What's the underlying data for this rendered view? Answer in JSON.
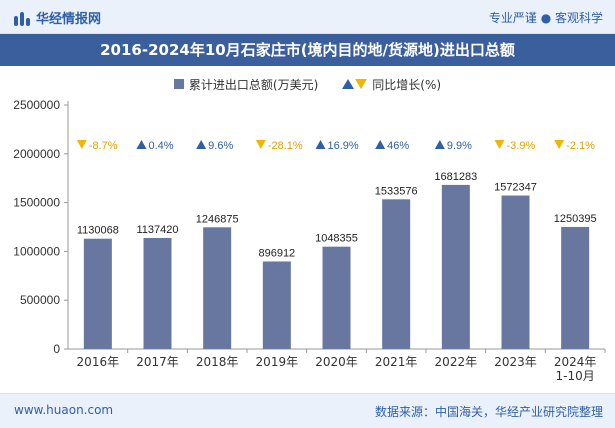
{
  "header": {
    "brand": "华经情报网",
    "tagline": "专业严谨 ● 客观科学"
  },
  "chart_data": {
    "type": "bar",
    "title": "2016-2024年10月石家庄市(境内目的地/货源地)进出口总额",
    "categories": [
      "2016年",
      "2017年",
      "2018年",
      "2019年",
      "2020年",
      "2021年",
      "2022年",
      "2023年",
      "2024年\n1-10月"
    ],
    "series": [
      {
        "name": "累计进出口总额(万美元)",
        "values": [
          1130068,
          1137420,
          1246875,
          896912,
          1048355,
          1533576,
          1681283,
          1572347,
          1250395
        ]
      },
      {
        "name": "同比增长(%)",
        "values": [
          -8.7,
          0.4,
          9.6,
          -28.1,
          16.9,
          46,
          9.9,
          -3.9,
          -2.1
        ]
      }
    ],
    "growth_labels": [
      "-8.7%",
      "0.4%",
      "9.6%",
      "-28.1%",
      "16.9%",
      "46%",
      "9.9%",
      "-3.9%",
      "-2.1%"
    ],
    "ylim": [
      0,
      2500000
    ],
    "yticks": [
      0,
      500000,
      1000000,
      1500000,
      2000000,
      2500000
    ],
    "legend_position": "top-center",
    "colors": {
      "bar": "#6877a0",
      "up": "#2f5fa8",
      "down": "#f2b600",
      "up_text": "#2f5fa8",
      "down_text": "#e0a100"
    }
  },
  "footer": {
    "website": "www.huaon.com",
    "source": "数据来源：中国海关，华经产业研究院整理"
  }
}
